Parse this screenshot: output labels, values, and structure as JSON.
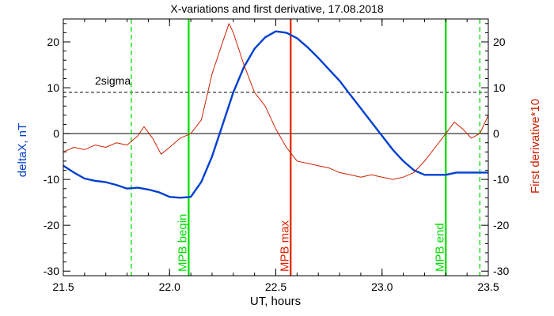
{
  "chart_data": {
    "type": "line",
    "title": "X-variations and first derivative, 17.08.2018",
    "xlabel": "UT, hours",
    "ylabel_left": "deltaX, nT",
    "ylabel_right": "First derivative*10",
    "xlim": [
      21.5,
      23.5
    ],
    "ylim": [
      -31,
      25
    ],
    "x_ticks": [
      "21.5",
      "22.0",
      "22.5",
      "23.0",
      "23.5"
    ],
    "y_ticks": [
      "-30",
      "-20",
      "-10",
      "0",
      "10",
      "20"
    ],
    "zero_line": 0,
    "sigma_level": 9,
    "sigma_label": "2sigma",
    "colors": {
      "deltaX": "#0040d0",
      "derivative": "#cc2200",
      "mpb": "#00dd00",
      "max": "#dd2200"
    },
    "series": [
      {
        "name": "deltaX, nT",
        "x": [
          21.5,
          21.55,
          21.6,
          21.65,
          21.7,
          21.75,
          21.8,
          21.85,
          21.9,
          21.95,
          22.0,
          22.05,
          22.1,
          22.15,
          22.2,
          22.25,
          22.3,
          22.35,
          22.4,
          22.45,
          22.5,
          22.55,
          22.6,
          22.65,
          22.7,
          22.75,
          22.8,
          22.85,
          22.9,
          22.95,
          23.0,
          23.05,
          23.1,
          23.15,
          23.2,
          23.25,
          23.3,
          23.35,
          23.4,
          23.45,
          23.5
        ],
        "values": [
          -7,
          -8.5,
          -9.8,
          -10.3,
          -10.6,
          -11.2,
          -12.0,
          -11.8,
          -12.2,
          -12.8,
          -13.8,
          -14.0,
          -13.8,
          -10.5,
          -5.0,
          2.0,
          9.0,
          14.5,
          18.5,
          21.0,
          22.3,
          22.0,
          20.8,
          18.8,
          16.5,
          14.0,
          11.5,
          8.5,
          5.5,
          2.5,
          -0.5,
          -3.5,
          -6.0,
          -8.0,
          -9.0,
          -9.0,
          -9.0,
          -8.5,
          -8.5,
          -8.5,
          -8.5
        ]
      },
      {
        "name": "First derivative*10",
        "x": [
          21.5,
          21.55,
          21.6,
          21.65,
          21.7,
          21.75,
          21.8,
          21.85,
          21.88,
          21.92,
          21.96,
          22.0,
          22.05,
          22.1,
          22.15,
          22.2,
          22.25,
          22.28,
          22.3,
          22.35,
          22.4,
          22.45,
          22.5,
          22.55,
          22.6,
          22.65,
          22.7,
          22.75,
          22.8,
          22.85,
          22.9,
          22.95,
          23.0,
          23.05,
          23.1,
          23.15,
          23.2,
          23.25,
          23.3,
          23.34,
          23.38,
          23.42,
          23.46,
          23.5
        ],
        "values": [
          -4,
          -3,
          -3.5,
          -2.5,
          -3,
          -2,
          -2.5,
          -0.5,
          1.5,
          -1,
          -4.5,
          -3,
          -1,
          0,
          3,
          13,
          20,
          24,
          22,
          15,
          9,
          6,
          1,
          -3,
          -6,
          -6.5,
          -7,
          -7.5,
          -8.5,
          -9,
          -9.5,
          -9,
          -9.5,
          -10,
          -9.5,
          -8.5,
          -6,
          -3,
          0,
          2.5,
          1,
          -1,
          0,
          4
        ]
      }
    ],
    "vlines": [
      {
        "x": 21.82,
        "style": "dashed",
        "color": "#00dd00",
        "label": ""
      },
      {
        "x": 22.09,
        "style": "solid",
        "color": "#00dd00",
        "label": "MPB begin"
      },
      {
        "x": 22.57,
        "style": "solid",
        "color": "#dd2200",
        "label": "MPB max"
      },
      {
        "x": 23.3,
        "style": "solid",
        "color": "#00dd00",
        "label": "MPB end"
      },
      {
        "x": 23.46,
        "style": "dashed",
        "color": "#00dd00",
        "label": ""
      }
    ]
  }
}
